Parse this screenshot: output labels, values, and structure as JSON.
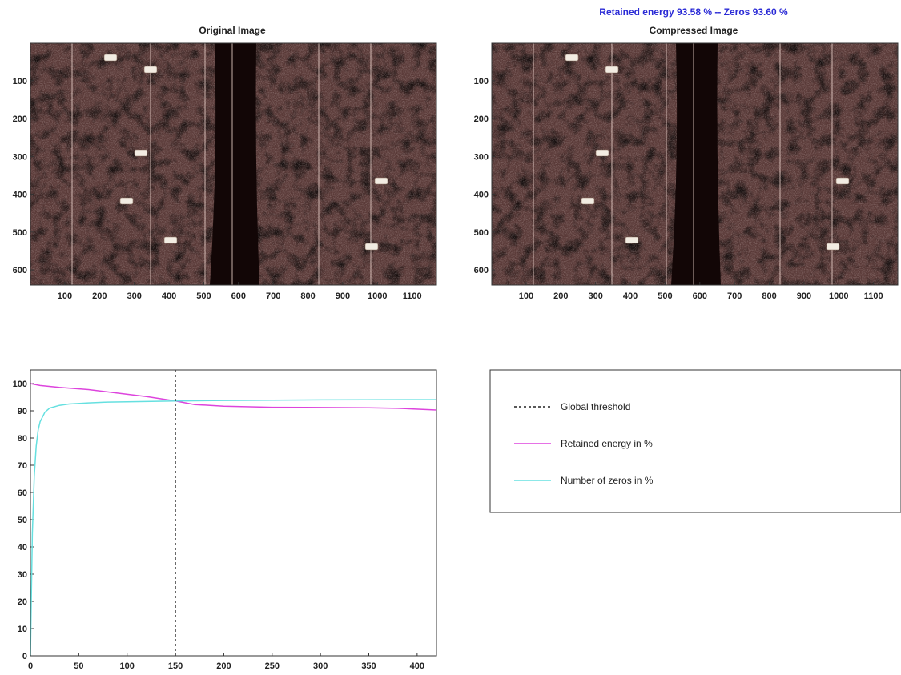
{
  "colors": {
    "stats_text": "#2b2bd6",
    "image_base": "#5a3a38",
    "image_dark": "#120606",
    "image_stripe": "#e8cfc8",
    "marker_fill": "#f2ece2",
    "retained_line": "#dd44dd",
    "zeros_line": "#66e0e0",
    "threshold_line": "#222222"
  },
  "chart_data": [
    {
      "type": "image",
      "title": "Original Image",
      "xticks": [
        100,
        200,
        300,
        400,
        500,
        600,
        700,
        800,
        900,
        1000,
        1100
      ],
      "yticks": [
        100,
        200,
        300,
        400,
        500,
        600
      ],
      "xlim": [
        1,
        1170
      ],
      "ylim": [
        1,
        640
      ]
    },
    {
      "type": "image",
      "title": "Compressed Image",
      "stats_label": "Retained energy 93.58 % -- Zeros 93.60 %",
      "xticks": [
        100,
        200,
        300,
        400,
        500,
        600,
        700,
        800,
        900,
        1000,
        1100
      ],
      "yticks": [
        100,
        200,
        300,
        400,
        500,
        600
      ],
      "xlim": [
        1,
        1170
      ],
      "ylim": [
        1,
        640
      ]
    },
    {
      "type": "line",
      "xlim": [
        0,
        420
      ],
      "ylim": [
        0,
        105
      ],
      "xticks": [
        0,
        50,
        100,
        150,
        200,
        250,
        300,
        350,
        400
      ],
      "yticks": [
        0,
        10,
        20,
        30,
        40,
        50,
        60,
        70,
        80,
        90,
        100
      ],
      "threshold_x": 150,
      "series": [
        {
          "name": "Retained energy in %",
          "x": [
            0,
            10,
            30,
            60,
            90,
            120,
            150,
            170,
            200,
            250,
            300,
            350,
            380,
            420
          ],
          "y": [
            100,
            99.3,
            98.6,
            97.8,
            96.5,
            95.2,
            93.6,
            92.3,
            91.7,
            91.3,
            91.2,
            91.1,
            90.9,
            90.3
          ]
        },
        {
          "name": "Number of zeros in %",
          "x": [
            0,
            2,
            4,
            6,
            8,
            10,
            15,
            20,
            30,
            40,
            60,
            80,
            100,
            150,
            200,
            300,
            420
          ],
          "y": [
            0,
            45,
            66,
            77,
            83,
            86,
            89.5,
            91,
            92,
            92.5,
            92.9,
            93.2,
            93.3,
            93.6,
            93.8,
            94,
            94.1
          ]
        }
      ],
      "legend": [
        {
          "label": "Global threshold",
          "style": "dotted"
        },
        {
          "label": "Retained energy in %",
          "style": "solid"
        },
        {
          "label": "Number of zeros in %",
          "style": "solid"
        }
      ]
    }
  ]
}
